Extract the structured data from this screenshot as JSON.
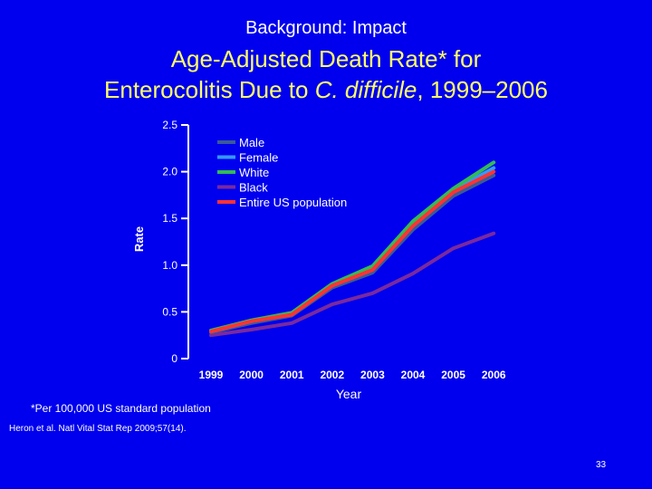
{
  "slide": {
    "kicker": "Background: Impact",
    "title_line1": "Age-Adjusted Death Rate* for",
    "title_line2_pre": "Enterocolitis Due to ",
    "title_line2_italic": "C. difficile",
    "title_line2_post": ", 1999–2006",
    "footnote": "*Per 100,000 US standard population",
    "source": "Heron et al. Natl Vital Stat Rep 2009;57(14).",
    "page_number": "33"
  },
  "chart_data": {
    "type": "line",
    "xlabel": "Year",
    "ylabel": "Rate",
    "x": [
      "1999",
      "2000",
      "2001",
      "2002",
      "2003",
      "2004",
      "2005",
      "2006"
    ],
    "ylim": [
      0,
      2.5
    ],
    "yticks": [
      "0",
      "0.5",
      "1.0",
      "1.5",
      "2.0",
      "2.5"
    ],
    "ytick_values": [
      0,
      0.5,
      1.0,
      1.5,
      2.0,
      2.5
    ],
    "grid": false,
    "legend_position": "top-left",
    "series": [
      {
        "name": "Male",
        "color": "#3c5a96",
        "values": [
          0.28,
          0.38,
          0.46,
          0.76,
          0.92,
          1.38,
          1.74,
          1.96
        ]
      },
      {
        "name": "Female",
        "color": "#3399ff",
        "values": [
          0.29,
          0.4,
          0.48,
          0.79,
          0.97,
          1.44,
          1.8,
          2.04
        ]
      },
      {
        "name": "White",
        "color": "#33bb55",
        "values": [
          0.3,
          0.41,
          0.49,
          0.8,
          0.99,
          1.47,
          1.82,
          2.1
        ]
      },
      {
        "name": "Black",
        "color": "#7a2a9e",
        "values": [
          0.25,
          0.31,
          0.38,
          0.58,
          0.7,
          0.91,
          1.18,
          1.34
        ]
      },
      {
        "name": "Entire US population",
        "color": "#ff3333",
        "values": [
          0.29,
          0.4,
          0.47,
          0.78,
          0.95,
          1.42,
          1.78,
          2.0
        ]
      }
    ]
  }
}
